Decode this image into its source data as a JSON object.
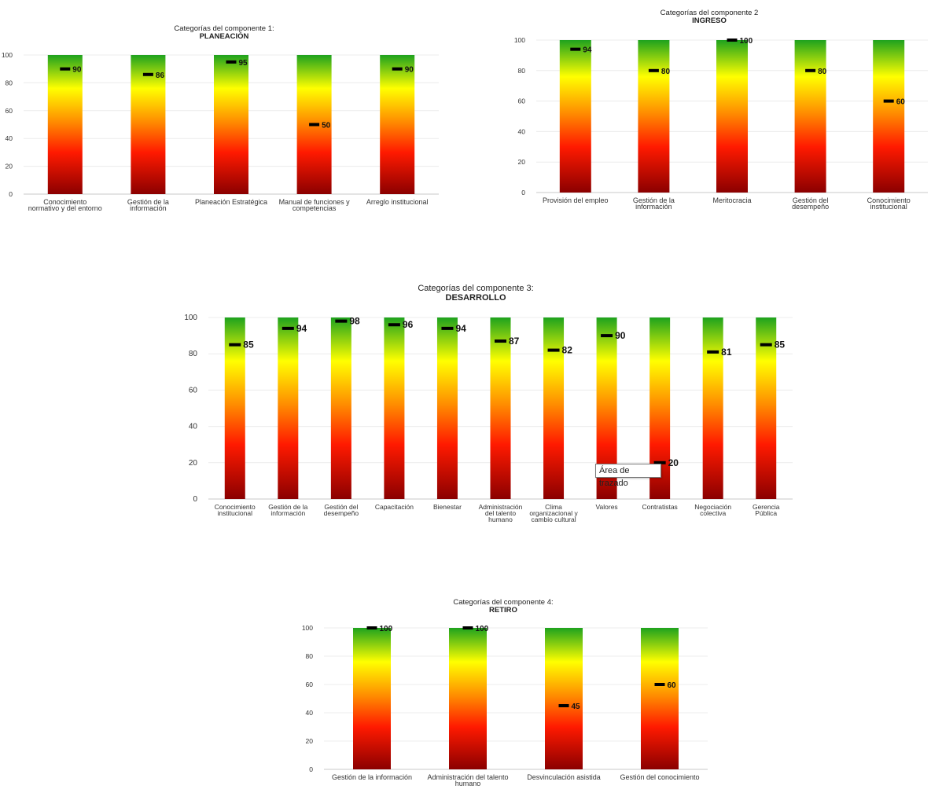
{
  "gradient_colors": {
    "top": "#1ea21e",
    "upper": "#ffff00",
    "middle": "#ff8c00",
    "lower": "#ff1a00",
    "bottom": "#8b0000",
    "marker": "#000000"
  },
  "tooltip": {
    "text": "Área de trazado"
  },
  "chart_data": [
    {
      "type": "bar",
      "title": "Categorías del componente 1:",
      "subtitle": "PLANEACIÓN",
      "categories": [
        [
          "Conocimiento",
          "normativo y del entorno"
        ],
        [
          "Gestión de la",
          "información"
        ],
        [
          "Planeación Estratégica"
        ],
        [
          "Manual de funciones y",
          "competencias"
        ],
        [
          "Arreglo institucional"
        ]
      ],
      "series": [
        {
          "values": [
            100,
            100,
            100,
            100,
            100
          ]
        },
        {
          "values": [
            90,
            86,
            95,
            50,
            90
          ]
        }
      ],
      "yticks": [
        0,
        20,
        40,
        60,
        80,
        100
      ],
      "ylim": [
        0,
        100
      ],
      "grid": true
    },
    {
      "type": "bar",
      "title": "Categorías del componente 2",
      "subtitle": "INGRESO",
      "categories": [
        [
          "Provisión del empleo"
        ],
        [
          "Gestión de la",
          "información"
        ],
        [
          "Meritocracia"
        ],
        [
          "Gestión del",
          "desempeño"
        ],
        [
          "Conocimiento",
          "institucional"
        ]
      ],
      "series": [
        {
          "values": [
            100,
            100,
            100,
            100,
            100
          ]
        },
        {
          "values": [
            94,
            80,
            100,
            80,
            60
          ]
        }
      ],
      "yticks": [
        0,
        20,
        40,
        60,
        80,
        100
      ],
      "ylim": [
        0,
        100
      ],
      "grid": true
    },
    {
      "type": "bar",
      "title": "Categorías del componente 3:",
      "subtitle": "DESARROLLO",
      "categories": [
        [
          "Conocimiento",
          "institucional"
        ],
        [
          "Gestión de la",
          "información"
        ],
        [
          "Gestión del",
          "desempeño"
        ],
        [
          "Capacitación"
        ],
        [
          "Bienestar"
        ],
        [
          "Administración",
          "del talento",
          "humano"
        ],
        [
          "Clima",
          "organizacional y",
          "cambio cultural"
        ],
        [
          "Valores"
        ],
        [
          "Contratistas"
        ],
        [
          "Negociación",
          "colectiva"
        ],
        [
          "Gerencia",
          "Pública"
        ]
      ],
      "series": [
        {
          "values": [
            100,
            100,
            100,
            100,
            100,
            100,
            100,
            100,
            100,
            100,
            100
          ]
        },
        {
          "values": [
            85,
            94,
            98,
            96,
            94,
            87,
            82,
            90,
            20,
            81,
            85
          ]
        }
      ],
      "yticks": [
        0,
        20,
        40,
        60,
        80,
        100
      ],
      "ylim": [
        0,
        100
      ],
      "grid": true
    },
    {
      "type": "bar",
      "title": "Categorías del componente 4:",
      "subtitle": "RETIRO",
      "categories": [
        [
          "Gestión de la información"
        ],
        [
          "Administración del talento",
          "humano"
        ],
        [
          "Desvinculación asistida"
        ],
        [
          "Gestión del conocimiento"
        ]
      ],
      "series": [
        {
          "values": [
            100,
            100,
            100,
            100
          ]
        },
        {
          "values": [
            100,
            100,
            45,
            60
          ]
        }
      ],
      "yticks": [
        0,
        20,
        40,
        60,
        80,
        100
      ],
      "ylim": [
        0,
        100
      ],
      "grid": true
    }
  ]
}
